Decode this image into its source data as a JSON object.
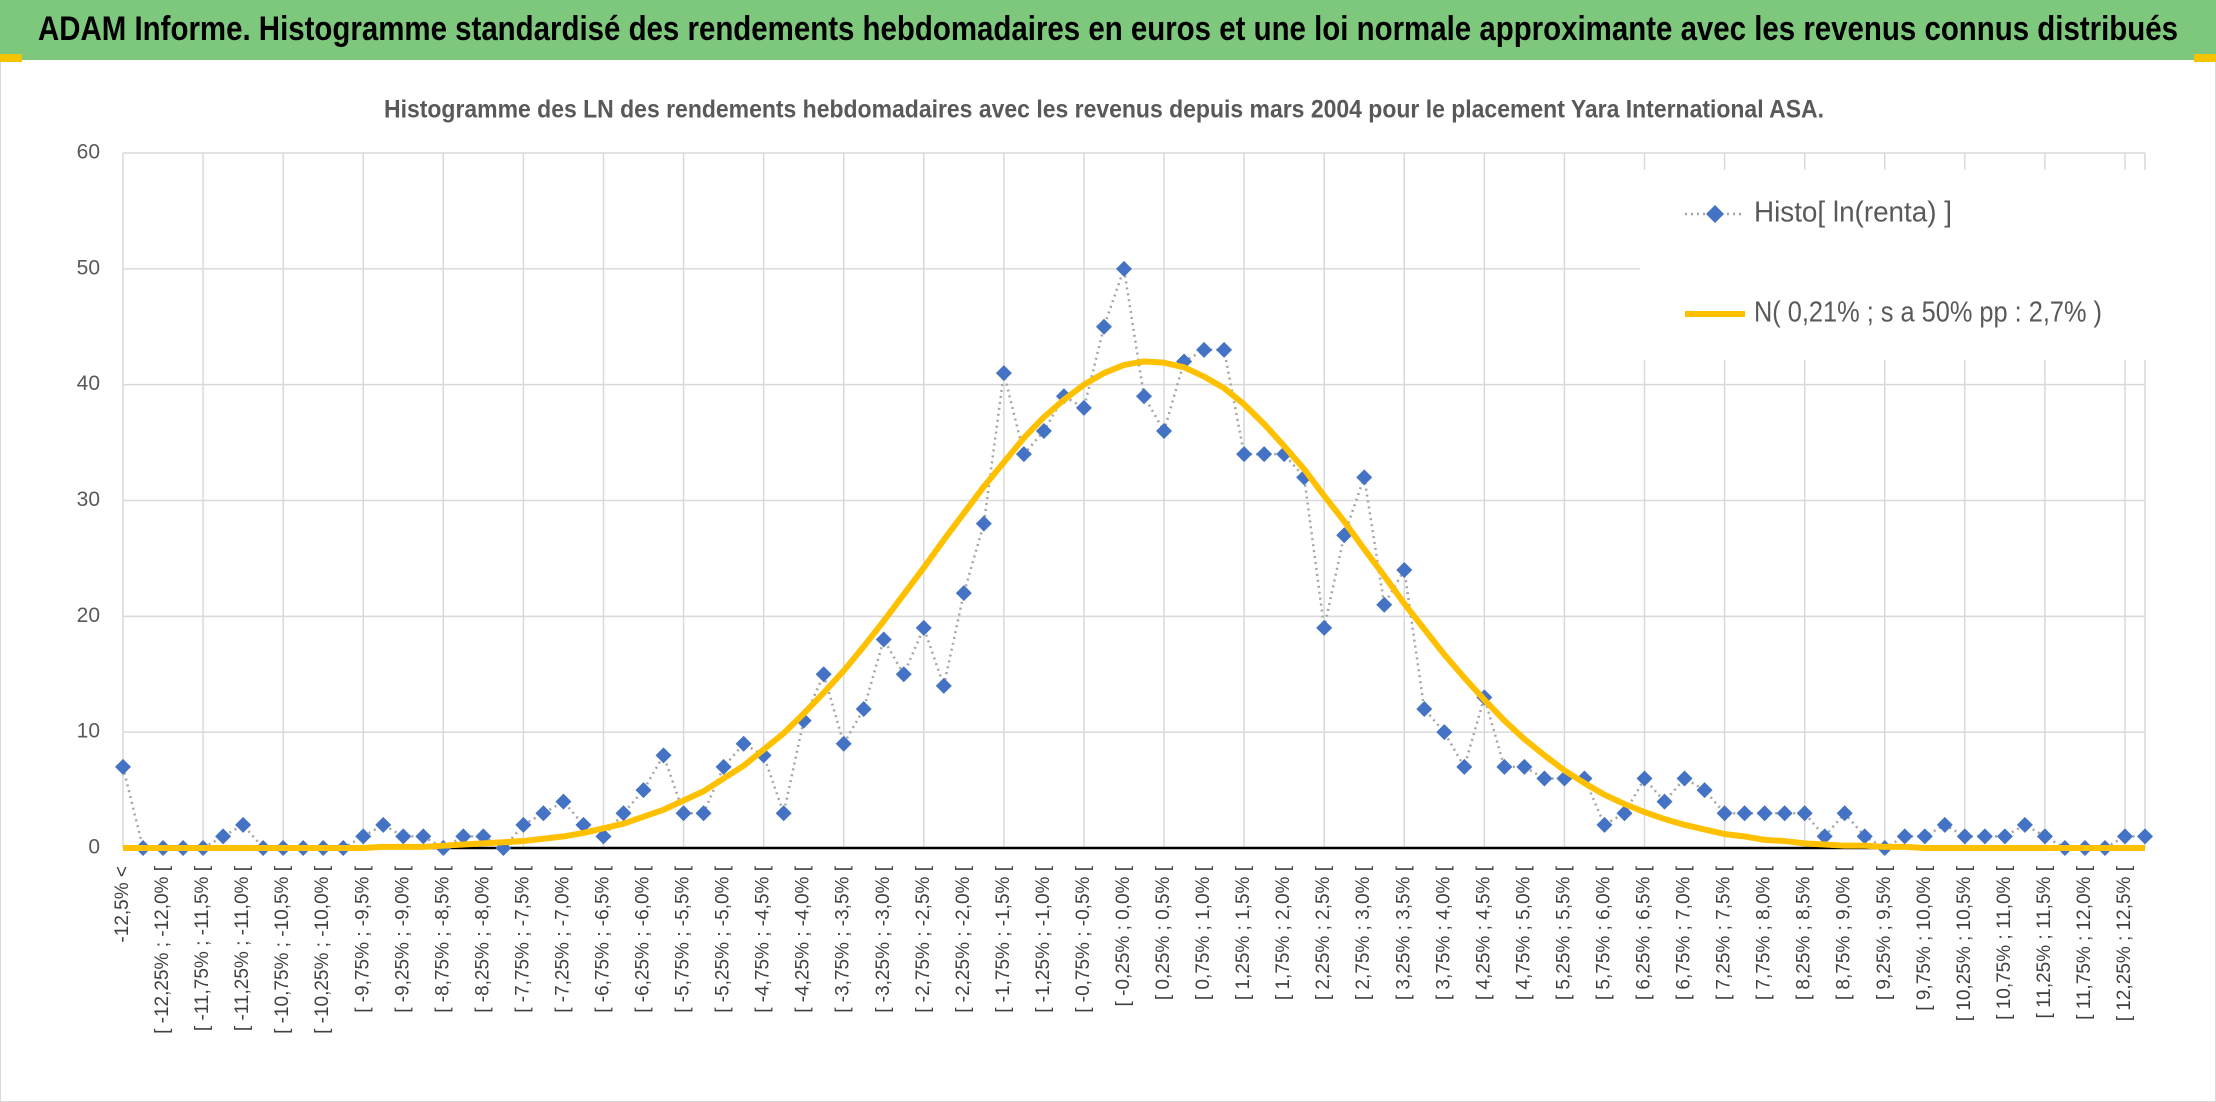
{
  "chart_data": {
    "type": "line",
    "header": "ADAM Informe. Histogramme standardisé des rendements hebdomadaires en euros et une loi normale approximante avec les revenus connus distribués",
    "title": "Histogramme des LN des rendements hebdomadaires avec les revenus depuis mars 2004 pour le placement Yara International ASA.",
    "categories": [
      "-12,5% <",
      null,
      "[ -12,25% ; -12,0% [",
      null,
      "[ -11,75% ; -11,5% [",
      null,
      "[ -11,25% ; -11,0% [",
      null,
      "[ -10,75% ; -10,5% [",
      null,
      "[ -10,25% ; -10,0% [",
      null,
      "[ -9,75% ; -9,5% [",
      null,
      "[ -9,25% ; -9,0% [",
      null,
      "[ -8,75% ; -8,5% [",
      null,
      "[ -8,25% ; -8,0% [",
      null,
      "[ -7,75% ; -7,5% [",
      null,
      "[ -7,25% ; -7,0% [",
      null,
      "[ -6,75% ; -6,5% [",
      null,
      "[ -6,25% ; -6,0% [",
      null,
      "[ -5,75% ; -5,5% [",
      null,
      "[ -5,25% ; -5,0% [",
      null,
      "[ -4,75% ; -4,5% [",
      null,
      "[ -4,25% ; -4,0% [",
      null,
      "[ -3,75% ; -3,5% [",
      null,
      "[ -3,25% ; -3,0% [",
      null,
      "[ -2,75% ; -2,5% [",
      null,
      "[ -2,25% ; -2,0% [",
      null,
      "[ -1,75% ; -1,5% [",
      null,
      "[ -1,25% ; -1,0% [",
      null,
      "[ -0,75% ; -0,5% [",
      null,
      "[ -0,25% ; 0,0% [",
      null,
      "[ 0,25% ; 0,5% [",
      null,
      "[ 0,75% ; 1,0% [",
      null,
      "[ 1,25% ; 1,5% [",
      null,
      "[ 1,75% ; 2,0% [",
      null,
      "[ 2,25% ; 2,5% [",
      null,
      "[ 2,75% ; 3,0% [",
      null,
      "[ 3,25% ; 3,5% [",
      null,
      "[ 3,75% ; 4,0% [",
      null,
      "[ 4,25% ; 4,5% [",
      null,
      "[ 4,75% ; 5,0% [",
      null,
      "[ 5,25% ; 5,5% [",
      null,
      "[ 5,75% ; 6,0% [",
      null,
      "[ 6,25% ; 6,5% [",
      null,
      "[ 6,75% ; 7,0% [",
      null,
      "[ 7,25% ; 7,5% [",
      null,
      "[ 7,75% ; 8,0% [",
      null,
      "[ 8,25% ; 8,5% [",
      null,
      "[ 8,75% ; 9,0% [",
      null,
      "[ 9,25% ; 9,5% [",
      null,
      "[ 9,75% ; 10,0% [",
      null,
      "[ 10,25% ; 10,5% [",
      null,
      "[ 10,75% ; 11,0% [",
      null,
      "[ 11,25% ; 11,5% [",
      null,
      "[ 11,75% ; 12,0% [",
      null,
      "[ 12,25% ; 12,5% [",
      null
    ],
    "series": [
      {
        "name": "Histo[ ln(renta) ]",
        "color": "#4472c4",
        "line_color": "#a5a5a5",
        "values": [
          7,
          0,
          0,
          0,
          0,
          1,
          2,
          0,
          0,
          0,
          0,
          0,
          1,
          2,
          1,
          1,
          0,
          1,
          1,
          0,
          2,
          3,
          4,
          2,
          1,
          3,
          5,
          8,
          3,
          3,
          7,
          9,
          8,
          3,
          11,
          15,
          9,
          12,
          18,
          15,
          19,
          14,
          22,
          28,
          41,
          34,
          36,
          39,
          38,
          45,
          50,
          39,
          36,
          42,
          43,
          43,
          34,
          34,
          34,
          32,
          19,
          27,
          32,
          21,
          24,
          12,
          10,
          7,
          13,
          7,
          7,
          6,
          6,
          6,
          2,
          3,
          6,
          4,
          6,
          5,
          3,
          3,
          3,
          3,
          3,
          1,
          3,
          1,
          0,
          1,
          1,
          2,
          1,
          1,
          1,
          2,
          1,
          0,
          0,
          0,
          1,
          1
        ]
      },
      {
        "name": "N( 0,21% ; s a 50% pp : 2,7% )",
        "color": "#ffc000",
        "values": [
          0,
          0,
          0,
          0,
          0,
          0,
          0,
          0,
          0,
          0,
          0,
          0,
          0,
          0.1,
          0.1,
          0.1,
          0.2,
          0.3,
          0.4,
          0.5,
          0.6,
          0.8,
          1.0,
          1.3,
          1.7,
          2.1,
          2.7,
          3.3,
          4.1,
          4.9,
          6.0,
          7.1,
          8.5,
          9.9,
          11.6,
          13.4,
          15.3,
          17.4,
          19.6,
          21.9,
          24.2,
          26.6,
          28.9,
          31.2,
          33.3,
          35.4,
          37.2,
          38.7,
          40.0,
          41.0,
          41.7,
          42.0,
          41.9,
          41.5,
          40.7,
          39.7,
          38.3,
          36.6,
          34.7,
          32.7,
          30.4,
          28.2,
          25.8,
          23.5,
          21.1,
          18.9,
          16.7,
          14.7,
          12.8,
          11.0,
          9.4,
          8.0,
          6.7,
          5.6,
          4.6,
          3.8,
          3.1,
          2.5,
          2.0,
          1.6,
          1.2,
          1.0,
          0.7,
          0.6,
          0.4,
          0.3,
          0.2,
          0.2,
          0.1,
          0.1,
          0,
          0,
          0,
          0,
          0,
          0,
          0,
          0,
          0,
          0,
          0,
          0
        ]
      }
    ],
    "ylim": [
      0,
      60
    ],
    "yticks": [
      0,
      10,
      20,
      30,
      40,
      50,
      60
    ],
    "grid": true,
    "legend": "upper right"
  }
}
